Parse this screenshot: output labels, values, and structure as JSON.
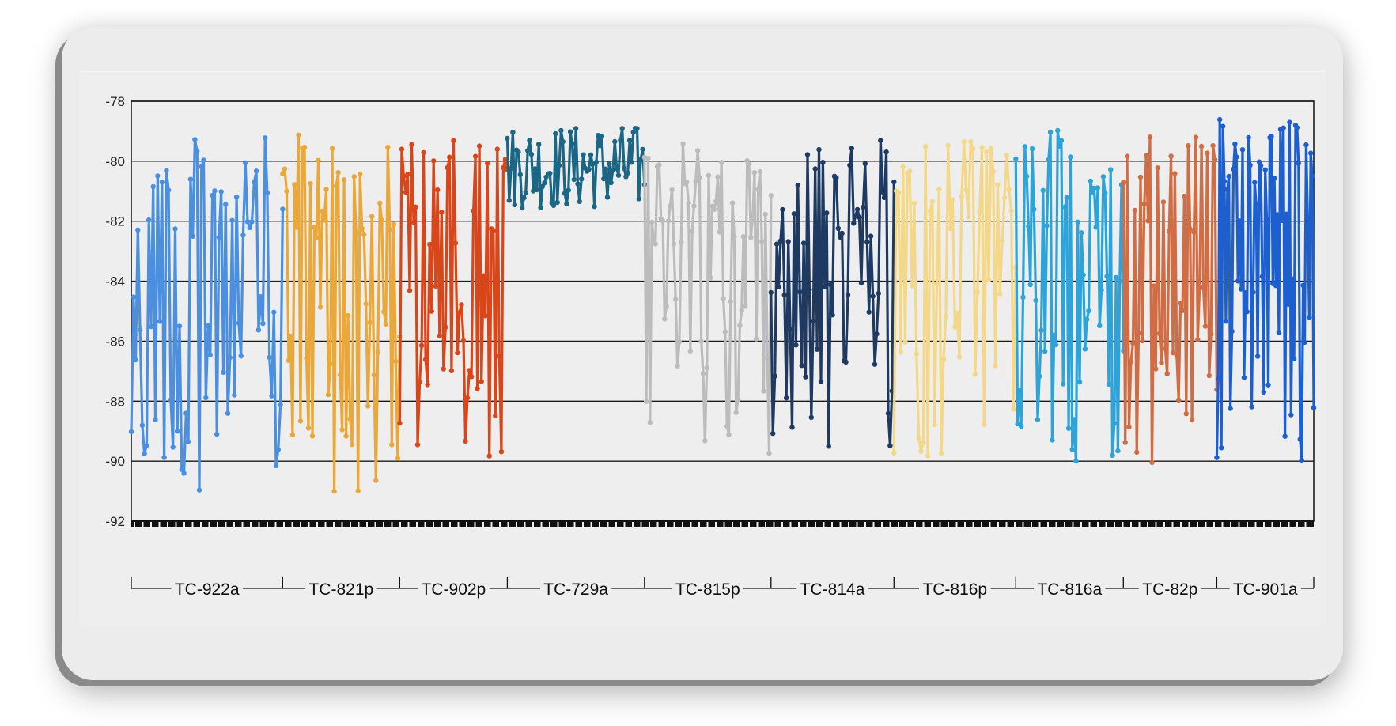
{
  "chart_data": {
    "type": "line",
    "title": "",
    "xlabel": "",
    "ylabel": "",
    "ylim": [
      -92,
      -78
    ],
    "yticks": [
      -78,
      -80,
      -82,
      -84,
      -86,
      -88,
      -90,
      -92
    ],
    "grid": true,
    "legend": "none",
    "series": [
      {
        "name": "TC-922a",
        "color": "#4a8fe0",
        "min": -91.0,
        "max": -79.2,
        "points": 70
      },
      {
        "name": "TC-821p",
        "color": "#eaa83a",
        "min": -91.2,
        "max": -79.1,
        "points": 60
      },
      {
        "name": "TC-902p",
        "color": "#d8461a",
        "min": -90.2,
        "max": -79.3,
        "points": 55
      },
      {
        "name": "TC-729a",
        "color": "#1b6685",
        "min": -81.6,
        "max": -78.8,
        "points": 75
      },
      {
        "name": "TC-815p",
        "color": "#bcbcbc",
        "min": -89.8,
        "max": -79.4,
        "points": 70
      },
      {
        "name": "TC-814a",
        "color": "#1f3a62",
        "min": -90.2,
        "max": -79.3,
        "points": 65
      },
      {
        "name": "TC-816p",
        "color": "#f4d88a",
        "min": -89.9,
        "max": -79.3,
        "points": 55
      },
      {
        "name": "TC-816a",
        "color": "#2ea3d8",
        "min": -90.1,
        "max": -78.9,
        "points": 60
      },
      {
        "name": "TC-82p",
        "color": "#d06d45",
        "min": -90.1,
        "max": -79.1,
        "points": 50
      },
      {
        "name": "TC-901a",
        "color": "#1e5fd0",
        "min": -90.1,
        "max": -78.6,
        "points": 65
      }
    ],
    "category_labels": [
      "TC-922a",
      "TC-821p",
      "TC-902p",
      "TC-729a",
      "TC-815p",
      "TC-814a",
      "TC-816p",
      "TC-816a",
      "TC-82p",
      "TC-901a"
    ]
  }
}
